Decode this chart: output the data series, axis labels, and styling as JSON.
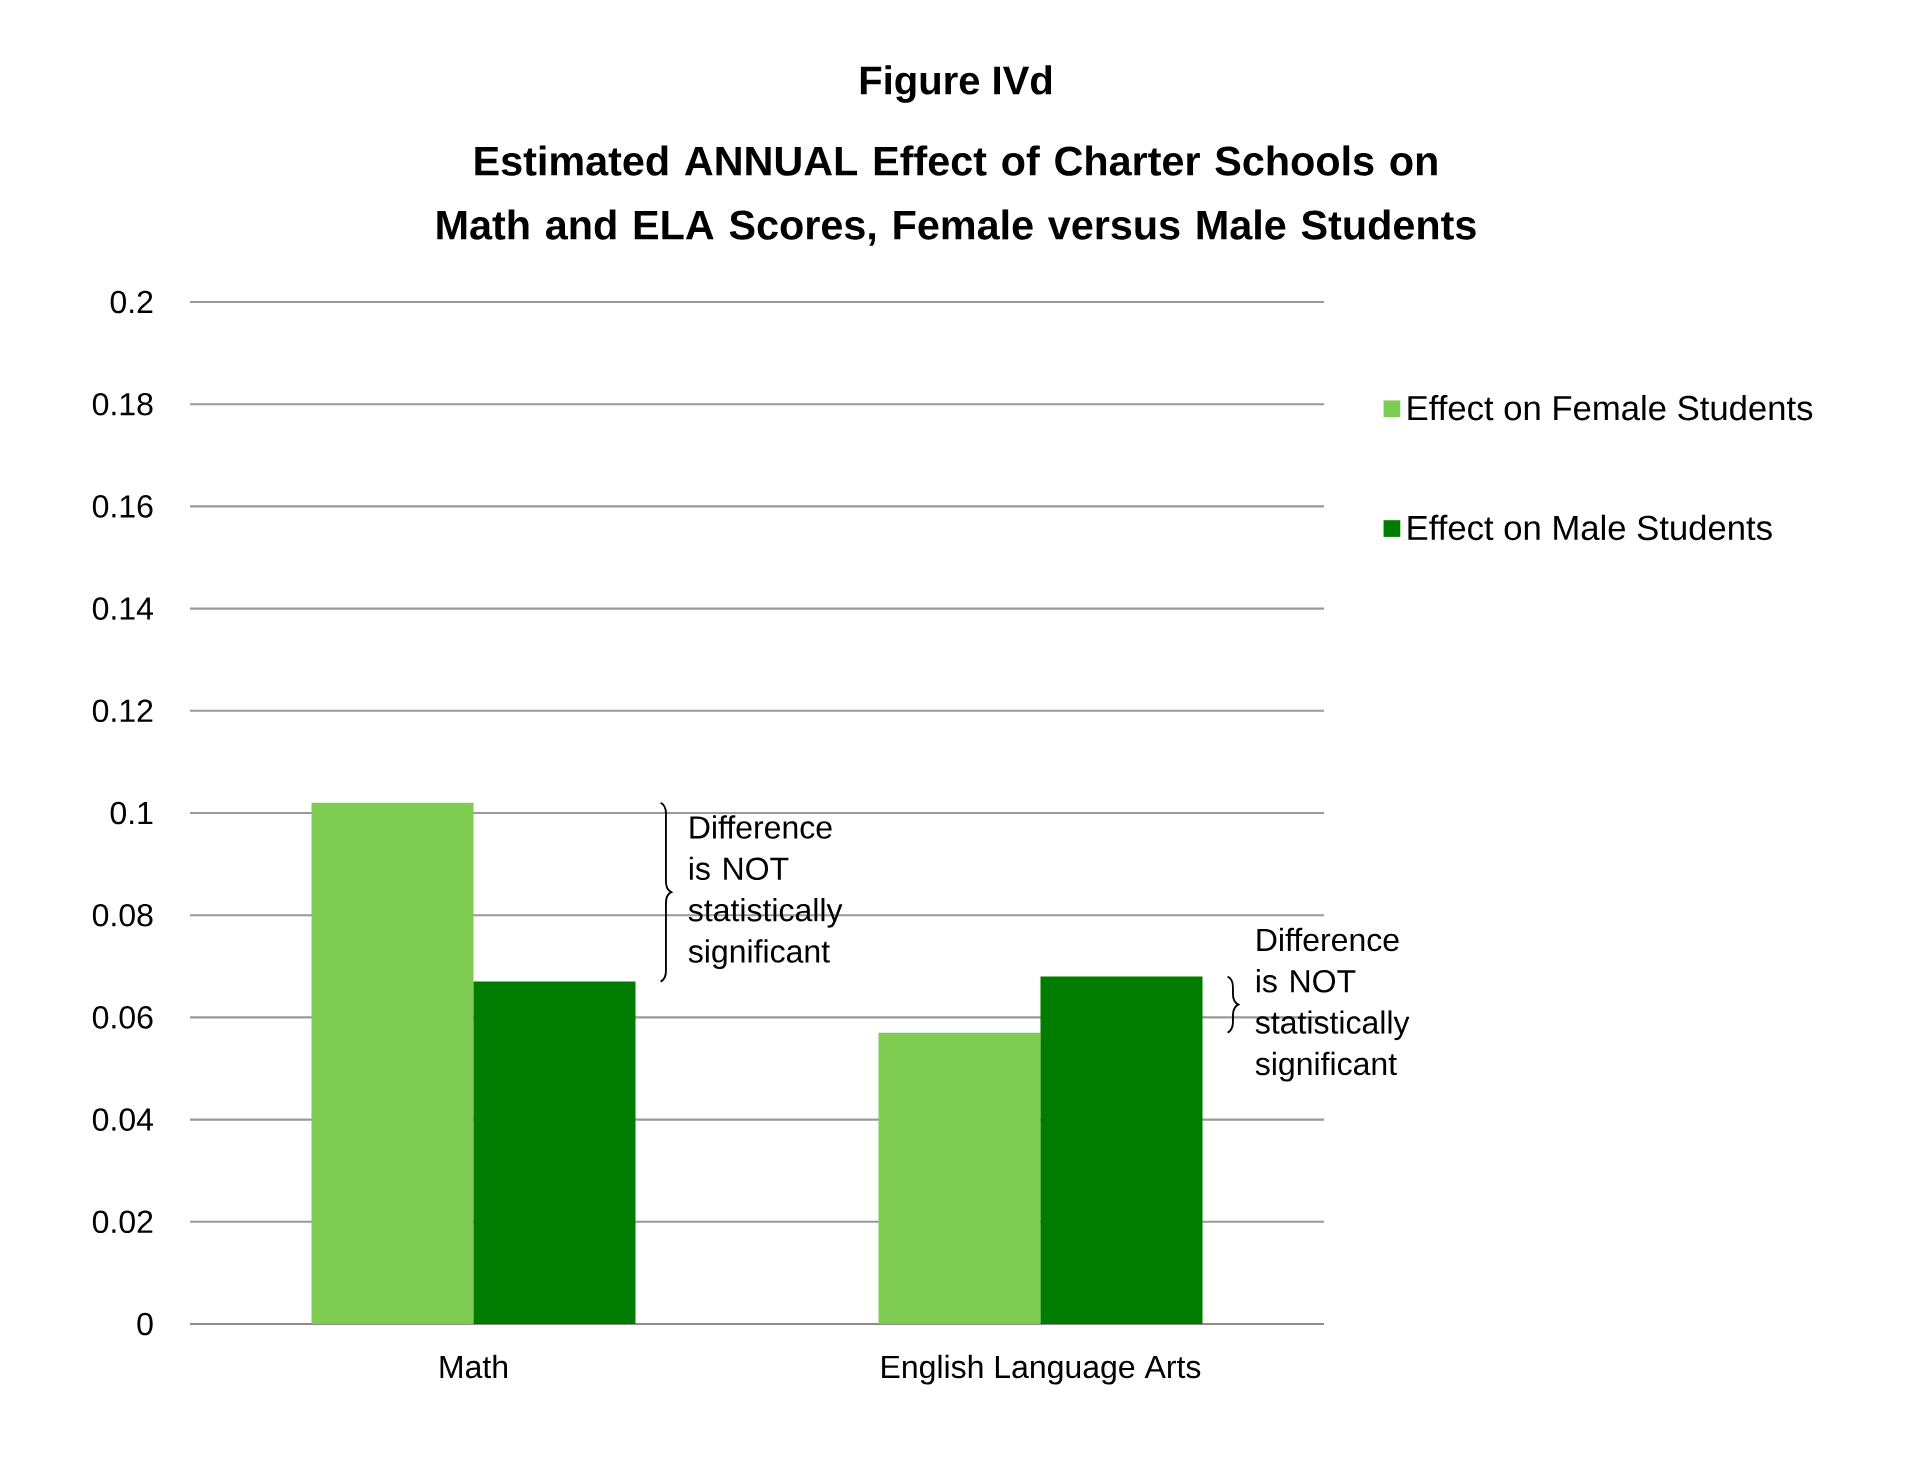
{
  "chart_data": {
    "type": "bar",
    "title": "Figure IVd",
    "subtitle": "Estimated ANNUAL Effect of Charter Schools on Math and ELA Scores,  Female versus Male Students",
    "categories": [
      "Math",
      "English Language Arts"
    ],
    "series": [
      {
        "name": "Effect on Female Students",
        "color": "#7ecd52",
        "values": [
          0.102,
          0.057
        ]
      },
      {
        "name": "Effect on Male Students",
        "color": "#007d00",
        "values": [
          0.067,
          0.068
        ]
      }
    ],
    "ylim": [
      0,
      0.2
    ],
    "yticks": [
      0,
      0.02,
      0.04,
      0.06,
      0.08,
      0.1,
      0.12,
      0.14,
      0.16,
      0.18,
      0.2
    ],
    "grid": "y",
    "legend": "right",
    "annotations": [
      "Difference is NOT statistically significant",
      "Difference is NOT statistically significant"
    ]
  }
}
